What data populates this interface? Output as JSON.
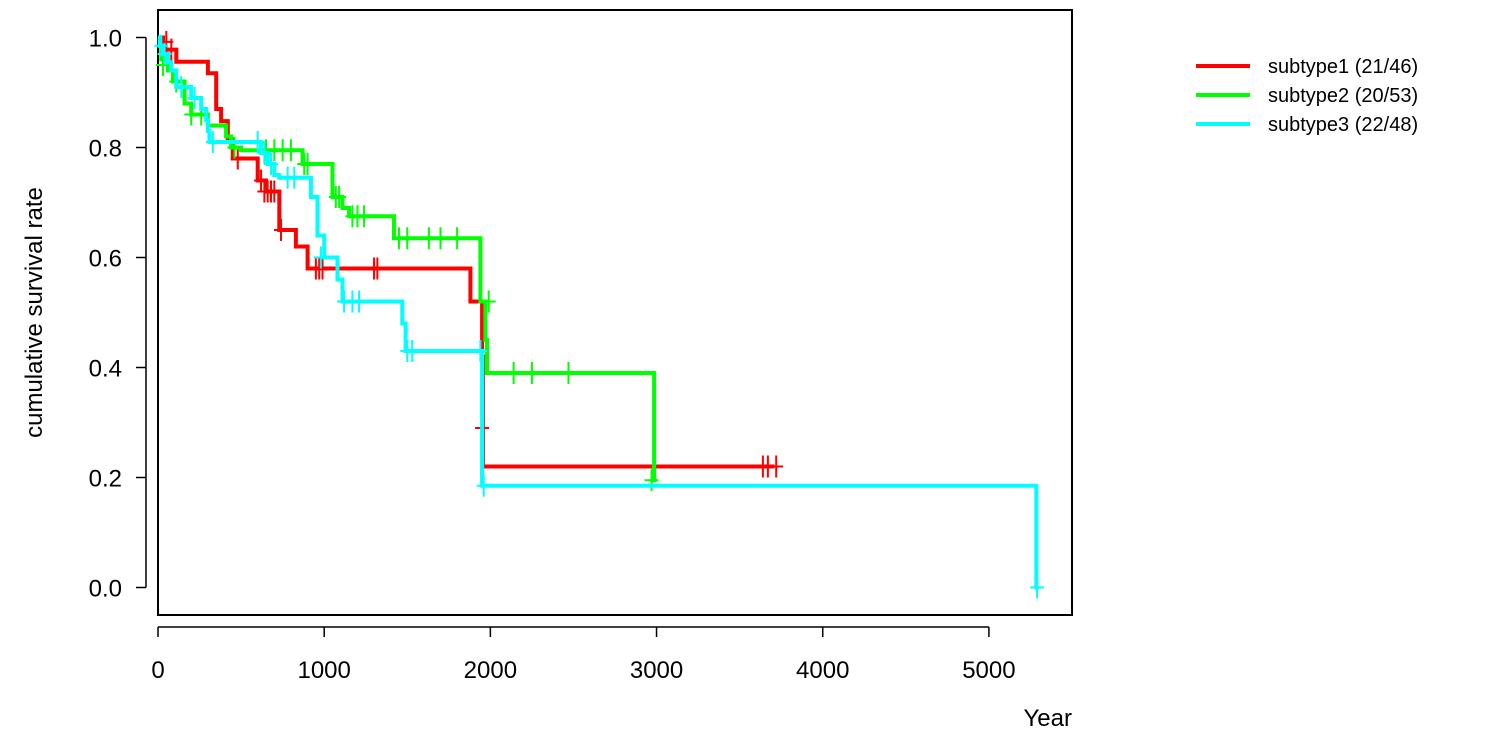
{
  "chart_data": {
    "type": "line",
    "subtype": "kaplan-meier",
    "title": "",
    "xlabel": "Year",
    "ylabel": "cumulative survival rate",
    "xlim": [
      0,
      5500
    ],
    "ylim": [
      -0.05,
      1.05
    ],
    "xticks": [
      0,
      1000,
      2000,
      3000,
      4000,
      5000
    ],
    "yticks": [
      0.0,
      0.2,
      0.4,
      0.6,
      0.8,
      1.0
    ],
    "xtick_labels": [
      "0",
      "1000",
      "2000",
      "3000",
      "4000",
      "5000"
    ],
    "ytick_labels": [
      "0.0",
      "0.2",
      "0.4",
      "0.6",
      "0.8",
      "1.0"
    ],
    "grid": false,
    "legend_position": "right",
    "series": [
      {
        "name": "subtype1 (21/46)",
        "color": "#ff0000",
        "steps": [
          [
            0,
            1.0
          ],
          [
            30,
            0.978
          ],
          [
            110,
            0.956
          ],
          [
            300,
            0.935
          ],
          [
            350,
            0.87
          ],
          [
            380,
            0.848
          ],
          [
            420,
            0.815
          ],
          [
            450,
            0.78
          ],
          [
            600,
            0.74
          ],
          [
            650,
            0.72
          ],
          [
            730,
            0.65
          ],
          [
            830,
            0.62
          ],
          [
            900,
            0.58
          ],
          [
            1880,
            0.52
          ],
          [
            1950,
            0.42
          ],
          [
            1955,
            0.22
          ],
          [
            3710,
            0.22
          ]
        ],
        "censors": [
          [
            50,
            0.992
          ],
          [
            80,
            0.978
          ],
          [
            480,
            0.78
          ],
          [
            620,
            0.74
          ],
          [
            640,
            0.72
          ],
          [
            660,
            0.72
          ],
          [
            680,
            0.72
          ],
          [
            700,
            0.72
          ],
          [
            740,
            0.65
          ],
          [
            950,
            0.58
          ],
          [
            970,
            0.58
          ],
          [
            990,
            0.58
          ],
          [
            1300,
            0.58
          ],
          [
            1320,
            0.58
          ],
          [
            1950,
            0.29
          ],
          [
            3640,
            0.22
          ],
          [
            3670,
            0.22
          ],
          [
            3720,
            0.22
          ]
        ]
      },
      {
        "name": "subtype2 (20/53)",
        "color": "#00ff00",
        "steps": [
          [
            0,
            0.985
          ],
          [
            20,
            0.96
          ],
          [
            60,
            0.94
          ],
          [
            90,
            0.92
          ],
          [
            160,
            0.88
          ],
          [
            200,
            0.86
          ],
          [
            300,
            0.84
          ],
          [
            410,
            0.82
          ],
          [
            440,
            0.8
          ],
          [
            500,
            0.795
          ],
          [
            870,
            0.77
          ],
          [
            1050,
            0.71
          ],
          [
            1110,
            0.69
          ],
          [
            1150,
            0.675
          ],
          [
            1420,
            0.635
          ],
          [
            1940,
            0.52
          ],
          [
            1970,
            0.45
          ],
          [
            1980,
            0.39
          ],
          [
            2980,
            0.39
          ],
          [
            2985,
            0.195
          ],
          [
            3000,
            0.195
          ]
        ],
        "censors": [
          [
            30,
            0.95
          ],
          [
            110,
            0.92
          ],
          [
            200,
            0.86
          ],
          [
            260,
            0.86
          ],
          [
            460,
            0.8
          ],
          [
            650,
            0.795
          ],
          [
            700,
            0.795
          ],
          [
            750,
            0.795
          ],
          [
            800,
            0.795
          ],
          [
            880,
            0.77
          ],
          [
            900,
            0.77
          ],
          [
            1070,
            0.71
          ],
          [
            1090,
            0.71
          ],
          [
            1170,
            0.675
          ],
          [
            1200,
            0.675
          ],
          [
            1240,
            0.675
          ],
          [
            1450,
            0.635
          ],
          [
            1500,
            0.635
          ],
          [
            1630,
            0.635
          ],
          [
            1700,
            0.635
          ],
          [
            1800,
            0.635
          ],
          [
            1990,
            0.52
          ],
          [
            2140,
            0.39
          ],
          [
            2250,
            0.39
          ],
          [
            2470,
            0.39
          ],
          [
            2970,
            0.195
          ]
        ]
      },
      {
        "name": "subtype3 (22/48)",
        "color": "#00ffff",
        "steps": [
          [
            0,
            1.0
          ],
          [
            10,
            0.985
          ],
          [
            30,
            0.97
          ],
          [
            60,
            0.955
          ],
          [
            80,
            0.94
          ],
          [
            110,
            0.91
          ],
          [
            200,
            0.89
          ],
          [
            260,
            0.87
          ],
          [
            290,
            0.85
          ],
          [
            300,
            0.83
          ],
          [
            310,
            0.81
          ],
          [
            620,
            0.79
          ],
          [
            660,
            0.77
          ],
          [
            700,
            0.75
          ],
          [
            730,
            0.745
          ],
          [
            920,
            0.71
          ],
          [
            960,
            0.64
          ],
          [
            1000,
            0.6
          ],
          [
            1080,
            0.56
          ],
          [
            1110,
            0.52
          ],
          [
            1470,
            0.48
          ],
          [
            1490,
            0.43
          ],
          [
            1950,
            0.185
          ],
          [
            5280,
            0.185
          ],
          [
            5285,
            0.0
          ],
          [
            5300,
            0.0
          ]
        ],
        "censors": [
          [
            20,
            0.985
          ],
          [
            40,
            0.97
          ],
          [
            140,
            0.91
          ],
          [
            220,
            0.89
          ],
          [
            330,
            0.81
          ],
          [
            600,
            0.81
          ],
          [
            640,
            0.79
          ],
          [
            680,
            0.77
          ],
          [
            780,
            0.745
          ],
          [
            820,
            0.745
          ],
          [
            980,
            0.6
          ],
          [
            1120,
            0.52
          ],
          [
            1170,
            0.52
          ],
          [
            1210,
            0.52
          ],
          [
            1500,
            0.43
          ],
          [
            1530,
            0.43
          ],
          [
            1940,
            0.43
          ],
          [
            1960,
            0.185
          ],
          [
            5290,
            0.0
          ]
        ]
      }
    ]
  }
}
